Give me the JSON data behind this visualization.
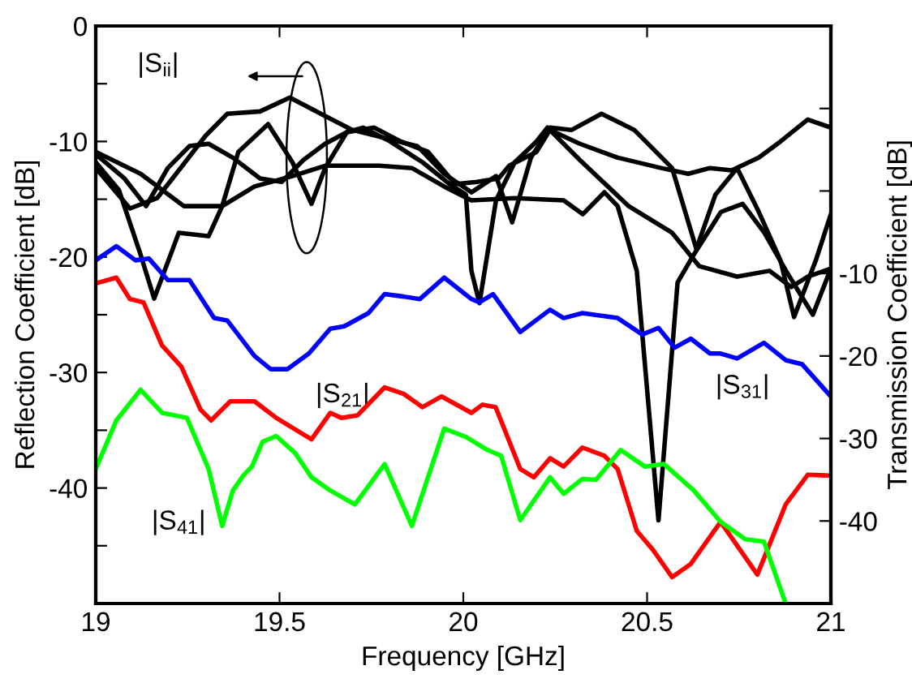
{
  "chart_data": {
    "type": "line",
    "xlabel": "Frequency [GHz]",
    "ylabel": "Reflection Coefficient [dB]",
    "y2label": "Transmission Coefficient [dB]",
    "xlim": [
      19,
      21
    ],
    "xticks": [
      19,
      19.5,
      20,
      20.5,
      21
    ],
    "ylim": [
      -50,
      0
    ],
    "yticks": [
      {
        "value": -50,
        "label": null
      },
      {
        "value": -45,
        "label": null
      },
      -40,
      {
        "value": -35,
        "label": null
      },
      -30,
      {
        "value": -25,
        "label": null
      },
      -20,
      {
        "value": -15,
        "label": null
      },
      -10,
      {
        "value": -5,
        "label": null
      },
      0
    ],
    "y2lim": [
      -50,
      20
    ],
    "y2ticks": [
      -40,
      -30,
      -20,
      -10,
      {
        "value": 0,
        "label": null
      },
      {
        "value": 10,
        "label": null
      }
    ],
    "grid": false,
    "legend": false,
    "marker": "none",
    "line_style": "solid",
    "series": [
      {
        "color": "#000000",
        "x": [
          19.0,
          19.093,
          19.167,
          19.226,
          19.299,
          19.358,
          19.447,
          19.528,
          19.624,
          19.698,
          19.786,
          19.875,
          19.948,
          20.022,
          20.089,
          20.133,
          20.184,
          20.236,
          20.295,
          20.376,
          20.465,
          20.568,
          20.634,
          20.686,
          20.745,
          20.804,
          20.863,
          20.9,
          20.959,
          21.0
        ],
        "values": [
          -12.3,
          -15.8,
          -14.9,
          -12.5,
          -9.5,
          -7.6,
          -7.4,
          -6.2,
          -7.8,
          -9.0,
          -9.7,
          -10.4,
          -12.8,
          -14.4,
          -13.0,
          -17.0,
          -11.4,
          -8.8,
          -9.0,
          -7.6,
          -9.0,
          -12.3,
          -19.3,
          -14.6,
          -12.3,
          -16.1,
          -20.3,
          -25.2,
          -20.3,
          -16.3
        ]
      },
      {
        "color": "#000000",
        "x": [
          19.0,
          19.063,
          19.122,
          19.159,
          19.226,
          19.307,
          19.344,
          19.388,
          19.469,
          19.535,
          19.587,
          19.624,
          19.683,
          19.727,
          19.801,
          19.889,
          19.963,
          20.007,
          20.022,
          20.044,
          20.089,
          20.14,
          20.199,
          20.229,
          20.317,
          20.45,
          20.568,
          20.642,
          20.745,
          20.833,
          20.892,
          20.937,
          21.0
        ],
        "values": [
          -11.8,
          -14.2,
          -19.8,
          -23.6,
          -17.9,
          -18.2,
          -15.6,
          -10.9,
          -8.5,
          -11.8,
          -15.4,
          -12.3,
          -9.2,
          -8.8,
          -10.0,
          -11.8,
          -13.7,
          -14.6,
          -21.2,
          -24.0,
          -15.1,
          -11.8,
          -10.0,
          -8.8,
          -11.6,
          -15.6,
          -17.9,
          -20.8,
          -21.7,
          -21.2,
          -22.6,
          -21.7,
          -21.0
        ]
      },
      {
        "color": "#000000",
        "x": [
          19.0,
          19.078,
          19.137,
          19.196,
          19.255,
          19.307,
          19.373,
          19.447,
          19.506,
          19.565,
          19.624,
          19.683,
          19.757,
          19.83,
          19.904,
          19.978,
          20.037,
          20.096,
          20.125,
          20.199,
          20.236,
          20.317,
          20.42,
          20.538,
          20.612,
          20.671,
          20.73,
          20.804,
          20.863,
          20.937,
          21.0
        ],
        "values": [
          -11.1,
          -13.2,
          -15.6,
          -12.3,
          -10.4,
          -10.2,
          -11.4,
          -13.2,
          -13.5,
          -11.6,
          -10.2,
          -9.2,
          -8.8,
          -10.0,
          -10.9,
          -13.7,
          -13.5,
          -13.2,
          -12.1,
          -10.9,
          -9.0,
          -10.2,
          -11.4,
          -12.3,
          -12.8,
          -12.3,
          -12.5,
          -11.4,
          -10.0,
          -8.1,
          -8.8
        ]
      },
      {
        "color": "#000000",
        "x": [
          19.0,
          19.122,
          19.24,
          19.344,
          19.432,
          19.535,
          19.624,
          19.771,
          19.86,
          19.948,
          20.022,
          20.14,
          20.273,
          20.325,
          20.384,
          20.42,
          20.472,
          20.531,
          20.583,
          20.627,
          20.701,
          20.76,
          20.819,
          20.878,
          20.951,
          21.0
        ],
        "values": [
          -10.9,
          -12.8,
          -15.6,
          -15.6,
          -13.9,
          -13.0,
          -12.1,
          -12.1,
          -12.3,
          -13.9,
          -15.1,
          -14.9,
          -15.1,
          -16.3,
          -14.4,
          -15.6,
          -21.2,
          -42.8,
          -22.2,
          -19.8,
          -16.1,
          -15.4,
          -17.9,
          -21.2,
          -25.0,
          -21.0
        ]
      },
      {
        "color": "#0000ff",
        "axis": "y2",
        "x": [
          19.0,
          19.056,
          19.108,
          19.145,
          19.196,
          19.255,
          19.322,
          19.358,
          19.432,
          19.476,
          19.521,
          19.58,
          19.638,
          19.676,
          19.742,
          19.786,
          19.838,
          19.882,
          19.948,
          20.022,
          20.044,
          20.081,
          20.155,
          20.236,
          20.273,
          20.324,
          20.42,
          20.487,
          20.531,
          20.575,
          20.619,
          20.671,
          20.7,
          20.745,
          20.818,
          20.877,
          20.922,
          21.0
        ],
        "values": [
          -8.4,
          -6.7,
          -8.4,
          -8.2,
          -10.8,
          -10.8,
          -15.4,
          -15.7,
          -20.0,
          -21.6,
          -21.6,
          -19.7,
          -16.7,
          -16.4,
          -14.8,
          -12.5,
          -12.8,
          -13.1,
          -10.5,
          -13.1,
          -13.5,
          -12.5,
          -17.1,
          -14.4,
          -15.4,
          -14.8,
          -15.4,
          -17.4,
          -16.6,
          -19.0,
          -17.9,
          -19.7,
          -19.7,
          -20.3,
          -18.4,
          -20.5,
          -21.0,
          -24.9
        ]
      },
      {
        "color": "#ff0000",
        "axis": "y2",
        "x": [
          19.0,
          19.056,
          19.093,
          19.13,
          19.18,
          19.233,
          19.285,
          19.314,
          19.366,
          19.432,
          19.491,
          19.587,
          19.638,
          19.668,
          19.712,
          19.786,
          19.838,
          19.889,
          19.941,
          20.022,
          20.052,
          20.088,
          20.155,
          20.192,
          20.236,
          20.273,
          20.324,
          20.384,
          20.42,
          20.472,
          20.516,
          20.568,
          20.619,
          20.7,
          20.8,
          20.877,
          20.937,
          21.0
        ],
        "values": [
          -11.2,
          -10.5,
          -13.1,
          -13.5,
          -18.7,
          -21.3,
          -26.5,
          -27.8,
          -25.5,
          -25.5,
          -27.5,
          -30.1,
          -26.9,
          -27.5,
          -27.2,
          -23.8,
          -24.6,
          -26.2,
          -24.9,
          -26.9,
          -25.9,
          -26.2,
          -33.7,
          -34.7,
          -32.4,
          -33.4,
          -31.1,
          -32.1,
          -33.7,
          -41.2,
          -43.5,
          -46.8,
          -45.2,
          -40.1,
          -46.5,
          -38.0,
          -34.4,
          -34.5
        ]
      },
      {
        "color": "#00ff00",
        "axis": "y2",
        "x": [
          19.0,
          19.056,
          19.122,
          19.181,
          19.248,
          19.307,
          19.344,
          19.373,
          19.403,
          19.425,
          19.454,
          19.491,
          19.543,
          19.587,
          19.638,
          19.705,
          19.786,
          19.86,
          19.948,
          20.007,
          20.066,
          20.103,
          20.155,
          20.236,
          20.273,
          20.324,
          20.361,
          20.428,
          20.494,
          20.546,
          20.627,
          20.7,
          20.767,
          20.818,
          20.877
        ],
        "values": [
          -33.7,
          -27.8,
          -24.1,
          -26.9,
          -27.5,
          -33.7,
          -40.6,
          -36.3,
          -34.4,
          -33.4,
          -30.4,
          -29.7,
          -31.8,
          -34.7,
          -36.3,
          -38.0,
          -33.1,
          -40.6,
          -28.8,
          -29.8,
          -31.4,
          -32.1,
          -39.9,
          -34.7,
          -36.7,
          -34.9,
          -35.0,
          -31.4,
          -33.4,
          -33.1,
          -36.3,
          -40.1,
          -42.2,
          -42.5,
          -50.0
        ]
      }
    ],
    "annotations": [
      "|S$_{ii}$|",
      "|S$_{21}$|",
      "|S$_{31}$|",
      "|S$_{41}$|"
    ]
  }
}
